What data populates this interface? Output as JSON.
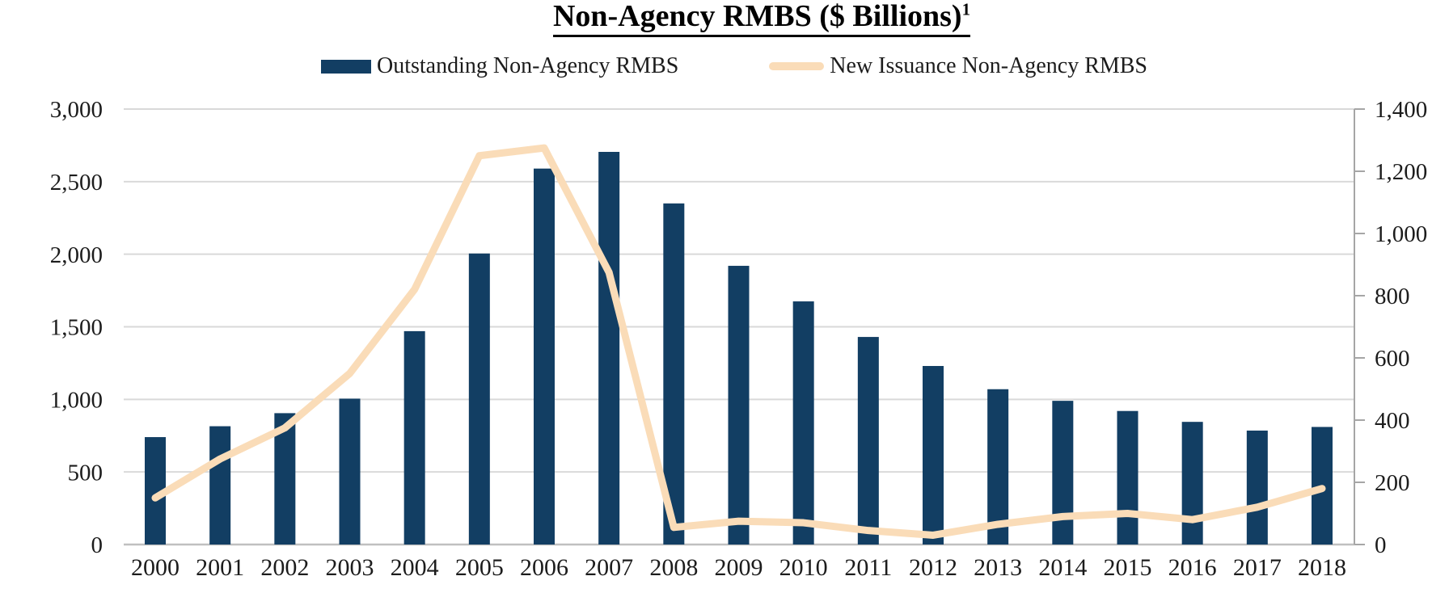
{
  "title": {
    "text": "Non-Agency RMBS ($ Billions)",
    "superscript": "1"
  },
  "legend": [
    {
      "label": "Outstanding Non-Agency RMBS",
      "type": "bar",
      "color": "#123e63"
    },
    {
      "label": "New Issuance Non-Agency RMBS",
      "type": "line",
      "color": "#fadcb8"
    }
  ],
  "chart_data": {
    "type": "bar",
    "title": "Non-Agency RMBS ($ Billions)",
    "categories": [
      "2000",
      "2001",
      "2002",
      "2003",
      "2004",
      "2005",
      "2006",
      "2007",
      "2008",
      "2009",
      "2010",
      "2011",
      "2012",
      "2013",
      "2014",
      "2015",
      "2016",
      "2017",
      "2018"
    ],
    "series": [
      {
        "name": "Outstanding Non-Agency RMBS",
        "type": "bar",
        "axis": "left",
        "color": "#123e63",
        "values": [
          740,
          815,
          905,
          1005,
          1470,
          2005,
          2590,
          2705,
          2350,
          1920,
          1675,
          1430,
          1230,
          1070,
          990,
          920,
          845,
          785,
          810
        ]
      },
      {
        "name": "New Issuance Non-Agency RMBS",
        "type": "line",
        "axis": "right",
        "color": "#fadcb8",
        "values": [
          150,
          275,
          375,
          550,
          820,
          1250,
          1275,
          875,
          55,
          75,
          70,
          45,
          30,
          65,
          90,
          100,
          80,
          120,
          180
        ]
      }
    ],
    "left_axis": {
      "min": 0,
      "max": 3000,
      "tick_step": 500,
      "tick_labels": [
        "0",
        "500",
        "1,000",
        "1,500",
        "2,000",
        "2,500",
        "3,000"
      ]
    },
    "right_axis": {
      "min": 0,
      "max": 1400,
      "tick_step": 200,
      "tick_labels": [
        "0",
        "200",
        "400",
        "600",
        "800",
        "1,000",
        "1,200",
        "1,400"
      ]
    },
    "grid": "horizontal",
    "legend_position": "top",
    "grid_color": "#d9d9d9",
    "axis_line_color": "#a6a6a6"
  }
}
